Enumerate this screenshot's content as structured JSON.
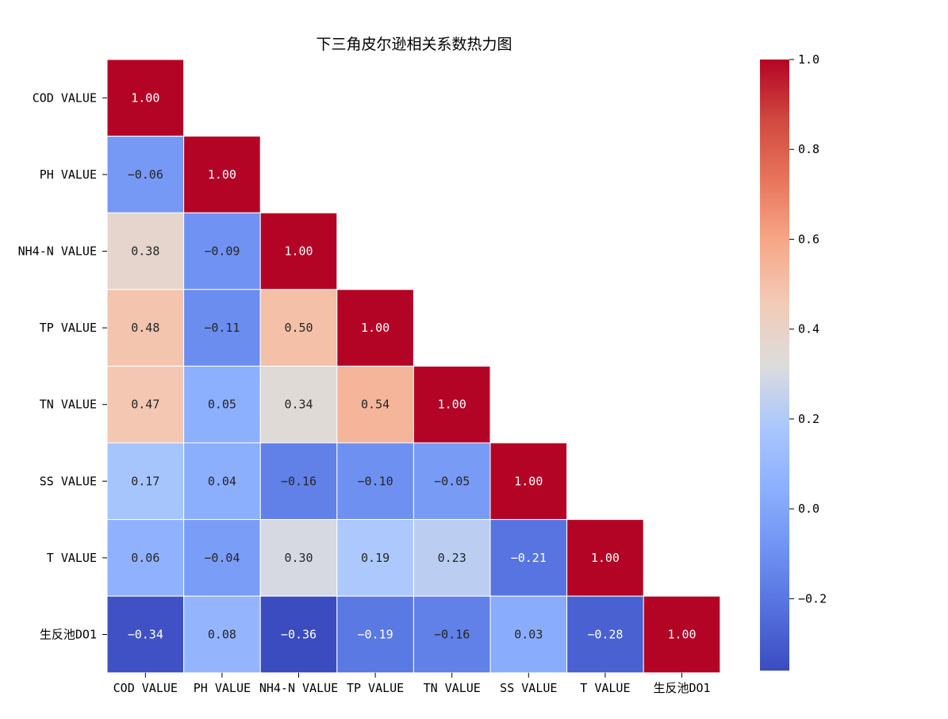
{
  "chart_data": {
    "type": "heatmap",
    "title": "下三角皮尔逊相关系数热力图",
    "mask": "upper-triangle",
    "labels": [
      "COD VALUE",
      "PH VALUE",
      "NH4-N VALUE",
      "TP VALUE",
      "TN VALUE",
      "SS VALUE",
      "T VALUE",
      "生反池DO1"
    ],
    "matrix": [
      [
        1.0
      ],
      [
        -0.06,
        1.0
      ],
      [
        0.38,
        -0.09,
        1.0
      ],
      [
        0.48,
        -0.11,
        0.5,
        1.0
      ],
      [
        0.47,
        0.05,
        0.34,
        0.54,
        1.0
      ],
      [
        0.17,
        0.04,
        -0.16,
        -0.1,
        -0.05,
        1.0
      ],
      [
        0.06,
        -0.04,
        0.3,
        0.19,
        0.23,
        -0.21,
        1.0
      ],
      [
        -0.34,
        0.08,
        -0.36,
        -0.19,
        -0.16,
        0.03,
        -0.28,
        1.0
      ]
    ],
    "value_format": "0.00",
    "colormap": "coolwarm",
    "vmin": -0.36,
    "vmax": 1.0,
    "colorbar": {
      "ticks": [
        1.0,
        0.8,
        0.6,
        0.4,
        0.2,
        0.0,
        -0.2
      ],
      "tick_labels": [
        "1.0",
        "0.8",
        "0.6",
        "0.4",
        "0.2",
        "0.0",
        "−0.2"
      ]
    },
    "cell_border_color": "#ffffff"
  }
}
